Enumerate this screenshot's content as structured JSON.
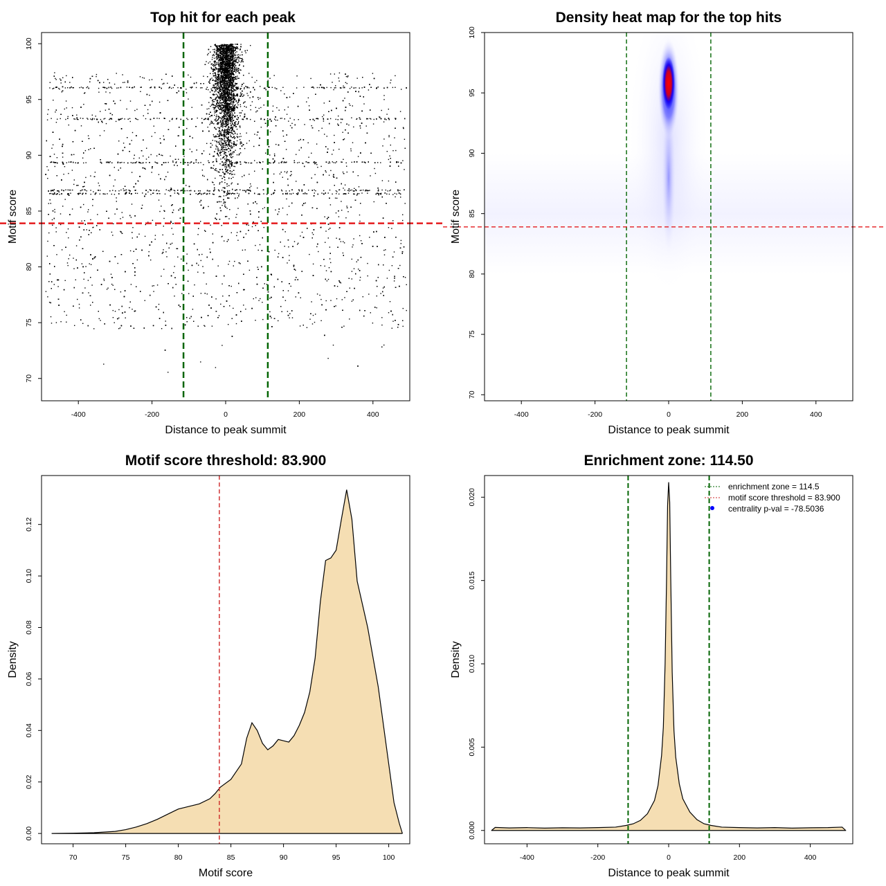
{
  "chart_data": [
    {
      "type": "scatter",
      "title": "Top hit for each peak",
      "xlabel": "Distance to peak summit",
      "ylabel": "Motif score",
      "xlim": [
        -500,
        500
      ],
      "ylim": [
        68,
        101
      ],
      "xticks": [
        -400,
        -200,
        0,
        200,
        400
      ],
      "yticks": [
        70,
        75,
        80,
        85,
        90,
        95,
        100
      ],
      "xtick_labels": [
        "-400",
        "-200",
        "0",
        "200",
        "400"
      ],
      "ytick_labels": [
        "70",
        "75",
        "80",
        "85",
        "90",
        "95",
        "100"
      ],
      "hlines": [
        {
          "y": 83.9,
          "color": "#e41a1c",
          "style": "dashed"
        }
      ],
      "vlines": [
        {
          "x": -114.5,
          "color": "#006400",
          "style": "dashed"
        },
        {
          "x": 114.5,
          "color": "#006400",
          "style": "dashed"
        }
      ],
      "point_color": "#000000",
      "point_count_shown": 12000,
      "description_of_distribution": {
        "center_spread_sd": 10,
        "center_score_range": [
          83,
          100
        ],
        "uniform_score_range": [
          75,
          98
        ],
        "horizontal_bands_scores": [
          86.6,
          86.9,
          89.4,
          93.3,
          96.1
        ]
      }
    },
    {
      "type": "heatmap",
      "title": "Density heat map for the top hits",
      "xlabel": "Distance to peak summit",
      "ylabel": "Motif score",
      "xlim": [
        -500,
        500
      ],
      "ylim": [
        69.5,
        100
      ],
      "xticks": [
        -400,
        -200,
        0,
        200,
        400
      ],
      "yticks": [
        70,
        75,
        80,
        85,
        90,
        95,
        100
      ],
      "xtick_labels": [
        "-400",
        "-200",
        "0",
        "200",
        "400"
      ],
      "ytick_labels": [
        "70",
        "75",
        "80",
        "85",
        "90",
        "95",
        "100"
      ],
      "hlines": [
        {
          "y": 83.9,
          "color": "#e41a1c",
          "style": "dashed"
        }
      ],
      "vlines": [
        {
          "x": -114.5,
          "color": "#006400",
          "style": "dashed"
        },
        {
          "x": 114.5,
          "color": "#006400",
          "style": "dashed"
        }
      ],
      "colormap": [
        "#ffffff",
        "#0000ff",
        "#ff0000"
      ],
      "peak": {
        "x": 0,
        "y": 95.8
      }
    },
    {
      "type": "area",
      "title": "Motif score threshold: 83.900",
      "xlabel": "Motif score",
      "ylabel": "Density",
      "xlim": [
        67,
        102
      ],
      "ylim": [
        -0.004,
        0.139
      ],
      "xticks": [
        70,
        75,
        80,
        85,
        90,
        95,
        100
      ],
      "yticks": [
        0.0,
        0.02,
        0.04,
        0.06,
        0.08,
        0.1,
        0.12
      ],
      "xtick_labels": [
        "70",
        "75",
        "80",
        "85",
        "90",
        "95",
        "100"
      ],
      "ytick_labels": [
        "0.00",
        "0.02",
        "0.04",
        "0.06",
        "0.08",
        "0.10",
        "0.12"
      ],
      "fill_color": "#f5deb3",
      "vlines": [
        {
          "x": 83.9,
          "color": "#cd2626",
          "style": "dashed"
        }
      ],
      "x": [
        68,
        70,
        72,
        74,
        75,
        76,
        77,
        78,
        79,
        80,
        81,
        82,
        83,
        83.5,
        84,
        85,
        86,
        86.5,
        87,
        87.5,
        88,
        88.5,
        89,
        89.5,
        90,
        90.5,
        91,
        91.5,
        92,
        92.5,
        93,
        93.5,
        94,
        94.5,
        95,
        95.5,
        96,
        96.5,
        97,
        98,
        99,
        100,
        100.5,
        101,
        101.3
      ],
      "y": [
        0.0,
        0.0001,
        0.0003,
        0.0008,
        0.0015,
        0.0025,
        0.0038,
        0.0055,
        0.0075,
        0.0095,
        0.0105,
        0.0115,
        0.0135,
        0.0155,
        0.018,
        0.021,
        0.027,
        0.037,
        0.043,
        0.04,
        0.035,
        0.0325,
        0.034,
        0.0365,
        0.036,
        0.0355,
        0.038,
        0.042,
        0.047,
        0.055,
        0.068,
        0.09,
        0.106,
        0.107,
        0.11,
        0.122,
        0.1335,
        0.122,
        0.098,
        0.08,
        0.057,
        0.027,
        0.012,
        0.004,
        0.0
      ]
    },
    {
      "type": "area",
      "title": "Enrichment zone: 114.50",
      "xlabel": "Distance to peak summit",
      "ylabel": "Density",
      "xlim": [
        -520,
        520
      ],
      "ylim": [
        -0.0008,
        0.0213
      ],
      "xticks": [
        -400,
        -200,
        0,
        200,
        400
      ],
      "yticks": [
        0.0,
        0.005,
        0.01,
        0.015,
        0.02
      ],
      "xtick_labels": [
        "-400",
        "-200",
        "0",
        "200",
        "400"
      ],
      "ytick_labels": [
        "0.000",
        "0.005",
        "0.010",
        "0.015",
        "0.020"
      ],
      "fill_color": "#f5deb3",
      "vlines": [
        {
          "x": -114.5,
          "color": "#006400",
          "style": "dashed"
        },
        {
          "x": 114.5,
          "color": "#006400",
          "style": "dashed"
        }
      ],
      "x": [
        -500,
        -490,
        -450,
        -400,
        -350,
        -300,
        -250,
        -200,
        -150,
        -120,
        -100,
        -80,
        -60,
        -40,
        -30,
        -20,
        -15,
        -10,
        -6,
        -3,
        0,
        3,
        6,
        10,
        15,
        20,
        30,
        40,
        60,
        80,
        100,
        120,
        150,
        200,
        250,
        300,
        350,
        400,
        450,
        490,
        500
      ],
      "y": [
        0.0,
        0.00018,
        0.00015,
        0.00017,
        0.00014,
        0.00016,
        0.00015,
        0.00017,
        0.0002,
        0.0003,
        0.0004,
        0.0006,
        0.001,
        0.0018,
        0.0027,
        0.0045,
        0.0062,
        0.01,
        0.015,
        0.0195,
        0.0209,
        0.0197,
        0.015,
        0.0095,
        0.006,
        0.0044,
        0.0028,
        0.0019,
        0.0011,
        0.00065,
        0.0004,
        0.0003,
        0.0002,
        0.00017,
        0.00015,
        0.00017,
        0.00014,
        0.00016,
        0.00017,
        0.0002,
        0.0
      ],
      "legend": {
        "placement": "top-right",
        "entries": [
          {
            "label": "enrichment zone = 114.5",
            "color": "#006400",
            "marker": "dotted-line"
          },
          {
            "label": "motif score threshold = 83.900",
            "color": "#cd2626",
            "marker": "dotted-line"
          },
          {
            "label": "centrality p-val = -78.5036",
            "color": "#0000ff",
            "marker": "dot"
          }
        ]
      }
    }
  ]
}
